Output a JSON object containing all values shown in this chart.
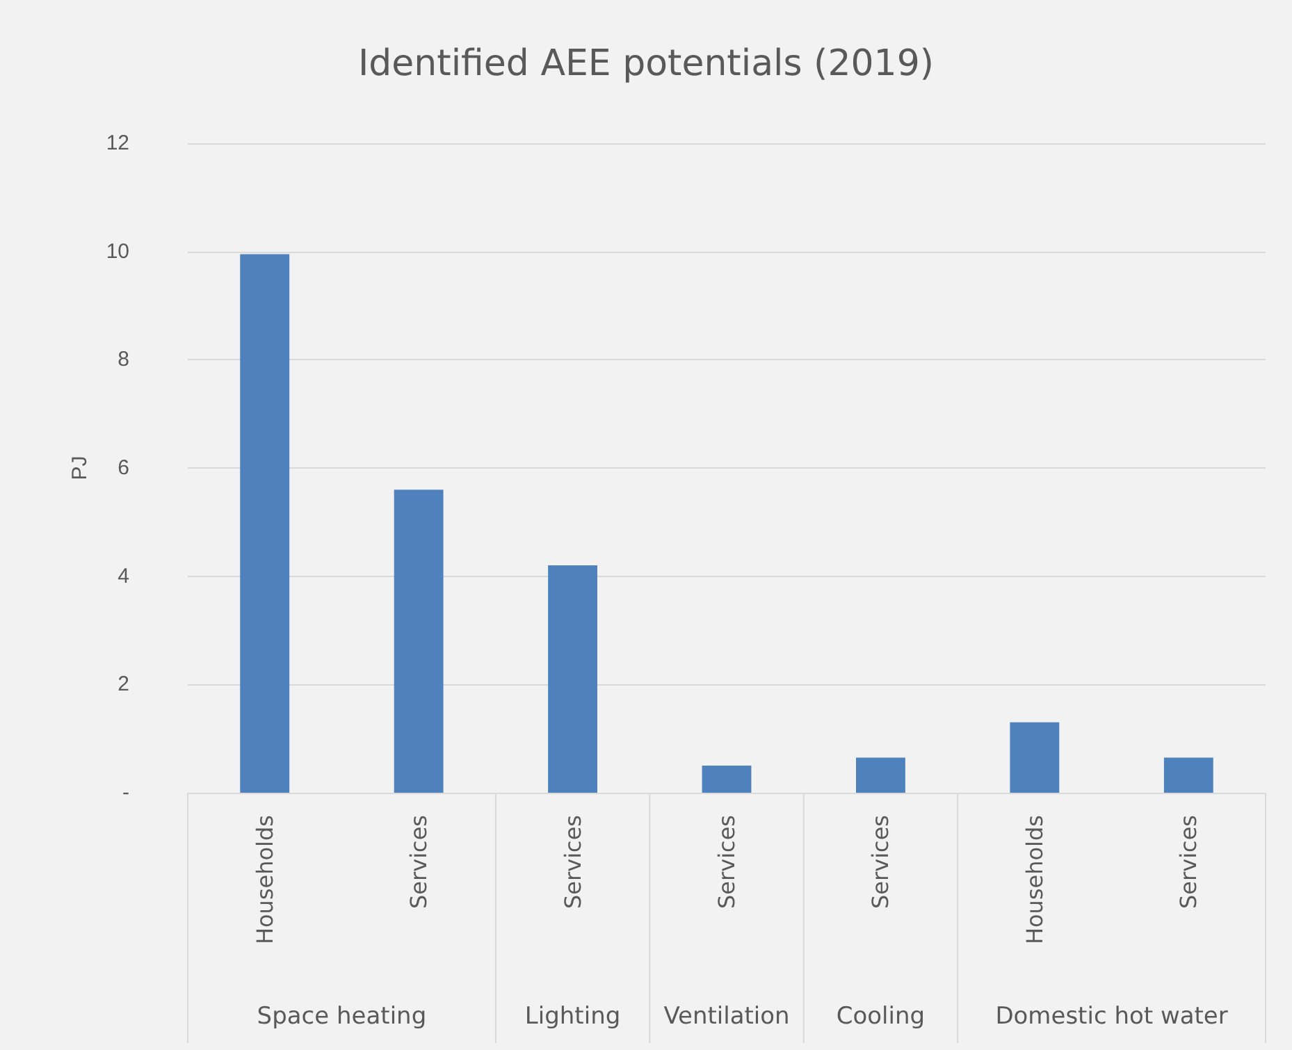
{
  "chart_data": {
    "type": "bar",
    "title": "Identified AEE potentials (2019)",
    "ylabel": "PJ",
    "categories": [
      "Households",
      "Services",
      "Services",
      "Services",
      "Services",
      "Households",
      "Services"
    ],
    "values": [
      9.95,
      5.6,
      4.2,
      0.5,
      0.65,
      1.3,
      0.65
    ],
    "color": "#4f81bd",
    "ylim": [
      0,
      12
    ],
    "yticks": [
      {
        "value": 0,
        "label": "-"
      },
      2,
      4,
      6,
      8,
      10,
      12
    ],
    "grid": "y",
    "annotations": [
      "Space heating",
      "Lighting",
      "Ventilation",
      "Cooling",
      "Domestic hot water"
    ]
  }
}
